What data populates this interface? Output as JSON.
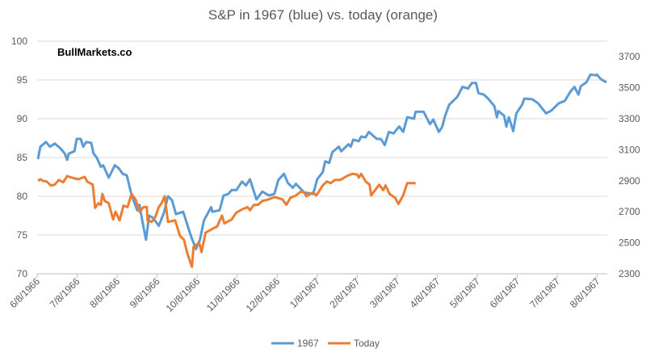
{
  "chart_data": {
    "type": "line",
    "title": "S&P in 1967 (blue) vs. today (orange)",
    "watermark": "BullMarkets.co",
    "xlabel": "",
    "x_unit": "months since 6/8/1966",
    "x_tick_labels": [
      "6/8/1966",
      "7/8/1966",
      "8/8/1966",
      "9/8/1966",
      "10/8/1966",
      "11/8/1966",
      "12/8/1966",
      "1/8/1967",
      "2/8/1967",
      "3/8/1967",
      "4/8/1967",
      "5/8/1967",
      "6/8/1967",
      "7/8/1967",
      "8/8/1967"
    ],
    "xlim": [
      0,
      14.25
    ],
    "y_left": {
      "ylim": [
        70,
        100
      ],
      "ticks": [
        "70",
        "75",
        "80",
        "85",
        "90",
        "95",
        "100"
      ]
    },
    "y_right": {
      "ylim": [
        2300,
        3800
      ],
      "ticks": [
        "2300",
        "2500",
        "2700",
        "2900",
        "3100",
        "3300",
        "3500",
        "3700"
      ]
    },
    "grid": true,
    "legend_position": "bottom",
    "series": [
      {
        "name": "1967",
        "axis": "left",
        "color": "#5B9BD5",
        "points": [
          [
            0.02,
            84.8
          ],
          [
            0.08,
            86.4
          ],
          [
            0.22,
            87.0
          ],
          [
            0.32,
            86.4
          ],
          [
            0.44,
            86.8
          ],
          [
            0.58,
            86.2
          ],
          [
            0.69,
            85.5
          ],
          [
            0.75,
            84.7
          ],
          [
            0.79,
            85.5
          ],
          [
            0.93,
            85.8
          ],
          [
            0.99,
            87.4
          ],
          [
            1.09,
            87.4
          ],
          [
            1.15,
            86.4
          ],
          [
            1.23,
            87.0
          ],
          [
            1.35,
            86.9
          ],
          [
            1.41,
            85.5
          ],
          [
            1.49,
            85.0
          ],
          [
            1.59,
            83.8
          ],
          [
            1.65,
            84.0
          ],
          [
            1.79,
            82.4
          ],
          [
            1.94,
            84.0
          ],
          [
            2.04,
            83.6
          ],
          [
            2.14,
            82.9
          ],
          [
            2.24,
            82.7
          ],
          [
            2.34,
            80.6
          ],
          [
            2.4,
            79.6
          ],
          [
            2.5,
            78.2
          ],
          [
            2.56,
            78.9
          ],
          [
            2.64,
            76.5
          ],
          [
            2.72,
            74.4
          ],
          [
            2.8,
            77.5
          ],
          [
            2.9,
            77.2
          ],
          [
            3.04,
            76.2
          ],
          [
            3.17,
            77.9
          ],
          [
            3.27,
            80.0
          ],
          [
            3.37,
            79.5
          ],
          [
            3.47,
            77.7
          ],
          [
            3.65,
            78.0
          ],
          [
            3.75,
            76.4
          ],
          [
            3.85,
            74.8
          ],
          [
            3.97,
            73.2
          ],
          [
            4.07,
            74.4
          ],
          [
            4.17,
            76.9
          ],
          [
            4.35,
            78.6
          ],
          [
            4.38,
            78.0
          ],
          [
            4.56,
            78.2
          ],
          [
            4.66,
            80.1
          ],
          [
            4.78,
            80.3
          ],
          [
            4.86,
            80.8
          ],
          [
            4.98,
            80.8
          ],
          [
            5.12,
            81.9
          ],
          [
            5.22,
            81.4
          ],
          [
            5.32,
            82.2
          ],
          [
            5.48,
            79.6
          ],
          [
            5.63,
            80.6
          ],
          [
            5.79,
            80.1
          ],
          [
            5.93,
            80.3
          ],
          [
            6.03,
            82.1
          ],
          [
            6.17,
            82.9
          ],
          [
            6.27,
            81.7
          ],
          [
            6.39,
            81.1
          ],
          [
            6.47,
            81.6
          ],
          [
            6.67,
            80.5
          ],
          [
            6.9,
            80.3
          ],
          [
            7.0,
            82.2
          ],
          [
            7.14,
            83.1
          ],
          [
            7.2,
            84.5
          ],
          [
            7.3,
            84.3
          ],
          [
            7.38,
            85.7
          ],
          [
            7.54,
            86.4
          ],
          [
            7.6,
            85.8
          ],
          [
            7.78,
            86.7
          ],
          [
            7.84,
            86.4
          ],
          [
            7.9,
            87.3
          ],
          [
            8.04,
            87.1
          ],
          [
            8.1,
            87.7
          ],
          [
            8.21,
            87.6
          ],
          [
            8.29,
            88.3
          ],
          [
            8.49,
            87.4
          ],
          [
            8.59,
            87.4
          ],
          [
            8.69,
            86.6
          ],
          [
            8.79,
            88.3
          ],
          [
            8.91,
            88.1
          ],
          [
            9.05,
            89.0
          ],
          [
            9.15,
            88.3
          ],
          [
            9.25,
            90.2
          ],
          [
            9.42,
            90.0
          ],
          [
            9.46,
            90.9
          ],
          [
            9.66,
            90.9
          ],
          [
            9.82,
            89.3
          ],
          [
            9.9,
            89.9
          ],
          [
            10.04,
            88.3
          ],
          [
            10.12,
            88.9
          ],
          [
            10.2,
            90.4
          ],
          [
            10.3,
            91.8
          ],
          [
            10.5,
            92.8
          ],
          [
            10.63,
            94.1
          ],
          [
            10.77,
            93.9
          ],
          [
            10.87,
            94.6
          ],
          [
            10.97,
            94.6
          ],
          [
            11.03,
            93.3
          ],
          [
            11.17,
            93.1
          ],
          [
            11.27,
            92.6
          ],
          [
            11.37,
            92.0
          ],
          [
            11.43,
            91.6
          ],
          [
            11.49,
            90.2
          ],
          [
            11.53,
            91.0
          ],
          [
            11.67,
            90.4
          ],
          [
            11.73,
            89.0
          ],
          [
            11.79,
            90.2
          ],
          [
            11.9,
            88.4
          ],
          [
            11.98,
            90.7
          ],
          [
            12.12,
            91.8
          ],
          [
            12.18,
            92.6
          ],
          [
            12.38,
            92.5
          ],
          [
            12.52,
            92.0
          ],
          [
            12.72,
            90.7
          ],
          [
            12.84,
            91.0
          ],
          [
            13.04,
            92.0
          ],
          [
            13.19,
            92.3
          ],
          [
            13.33,
            93.5
          ],
          [
            13.43,
            94.1
          ],
          [
            13.53,
            93.1
          ],
          [
            13.59,
            94.2
          ],
          [
            13.73,
            94.7
          ],
          [
            13.83,
            95.7
          ],
          [
            13.95,
            95.6
          ],
          [
            13.99,
            95.7
          ],
          [
            14.09,
            95.1
          ],
          [
            14.23,
            94.7
          ]
        ]
      },
      {
        "name": "Today",
        "axis": "right",
        "color": "#ED7D31",
        "points": [
          [
            0.02,
            2900
          ],
          [
            0.08,
            2910
          ],
          [
            0.14,
            2900
          ],
          [
            0.24,
            2895
          ],
          [
            0.34,
            2870
          ],
          [
            0.44,
            2875
          ],
          [
            0.54,
            2905
          ],
          [
            0.65,
            2890
          ],
          [
            0.75,
            2930
          ],
          [
            0.93,
            2915
          ],
          [
            1.03,
            2910
          ],
          [
            1.13,
            2920
          ],
          [
            1.19,
            2925
          ],
          [
            1.25,
            2895
          ],
          [
            1.39,
            2875
          ],
          [
            1.45,
            2725
          ],
          [
            1.53,
            2755
          ],
          [
            1.59,
            2745
          ],
          [
            1.63,
            2815
          ],
          [
            1.69,
            2770
          ],
          [
            1.79,
            2755
          ],
          [
            1.9,
            2650
          ],
          [
            1.96,
            2700
          ],
          [
            2.06,
            2645
          ],
          [
            2.16,
            2740
          ],
          [
            2.26,
            2730
          ],
          [
            2.36,
            2815
          ],
          [
            2.46,
            2780
          ],
          [
            2.56,
            2700
          ],
          [
            2.66,
            2730
          ],
          [
            2.74,
            2730
          ],
          [
            2.76,
            2645
          ],
          [
            2.86,
            2635
          ],
          [
            2.96,
            2670
          ],
          [
            3.04,
            2730
          ],
          [
            3.11,
            2755
          ],
          [
            3.19,
            2800
          ],
          [
            3.27,
            2635
          ],
          [
            3.45,
            2645
          ],
          [
            3.57,
            2545
          ],
          [
            3.67,
            2520
          ],
          [
            3.75,
            2435
          ],
          [
            3.87,
            2345
          ],
          [
            3.91,
            2475
          ],
          [
            4.05,
            2500
          ],
          [
            4.11,
            2440
          ],
          [
            4.21,
            2565
          ],
          [
            4.38,
            2590
          ],
          [
            4.5,
            2605
          ],
          [
            4.62,
            2675
          ],
          [
            4.68,
            2625
          ],
          [
            4.86,
            2650
          ],
          [
            4.98,
            2695
          ],
          [
            5.12,
            2715
          ],
          [
            5.26,
            2730
          ],
          [
            5.32,
            2710
          ],
          [
            5.42,
            2745
          ],
          [
            5.52,
            2745
          ],
          [
            5.63,
            2770
          ],
          [
            5.79,
            2780
          ],
          [
            5.93,
            2795
          ],
          [
            6.13,
            2780
          ],
          [
            6.23,
            2745
          ],
          [
            6.33,
            2790
          ],
          [
            6.47,
            2805
          ],
          [
            6.59,
            2830
          ],
          [
            6.67,
            2825
          ],
          [
            6.73,
            2800
          ],
          [
            6.9,
            2825
          ],
          [
            6.98,
            2805
          ],
          [
            7.14,
            2870
          ],
          [
            7.24,
            2895
          ],
          [
            7.34,
            2885
          ],
          [
            7.44,
            2905
          ],
          [
            7.58,
            2905
          ],
          [
            7.74,
            2930
          ],
          [
            7.88,
            2945
          ],
          [
            8.0,
            2940
          ],
          [
            8.04,
            2920
          ],
          [
            8.1,
            2945
          ],
          [
            8.21,
            2895
          ],
          [
            8.31,
            2875
          ],
          [
            8.35,
            2805
          ],
          [
            8.55,
            2875
          ],
          [
            8.65,
            2840
          ],
          [
            8.71,
            2870
          ],
          [
            8.81,
            2815
          ],
          [
            8.95,
            2790
          ],
          [
            9.03,
            2750
          ],
          [
            9.15,
            2805
          ],
          [
            9.25,
            2885
          ],
          [
            9.46,
            2885
          ]
        ]
      }
    ]
  }
}
